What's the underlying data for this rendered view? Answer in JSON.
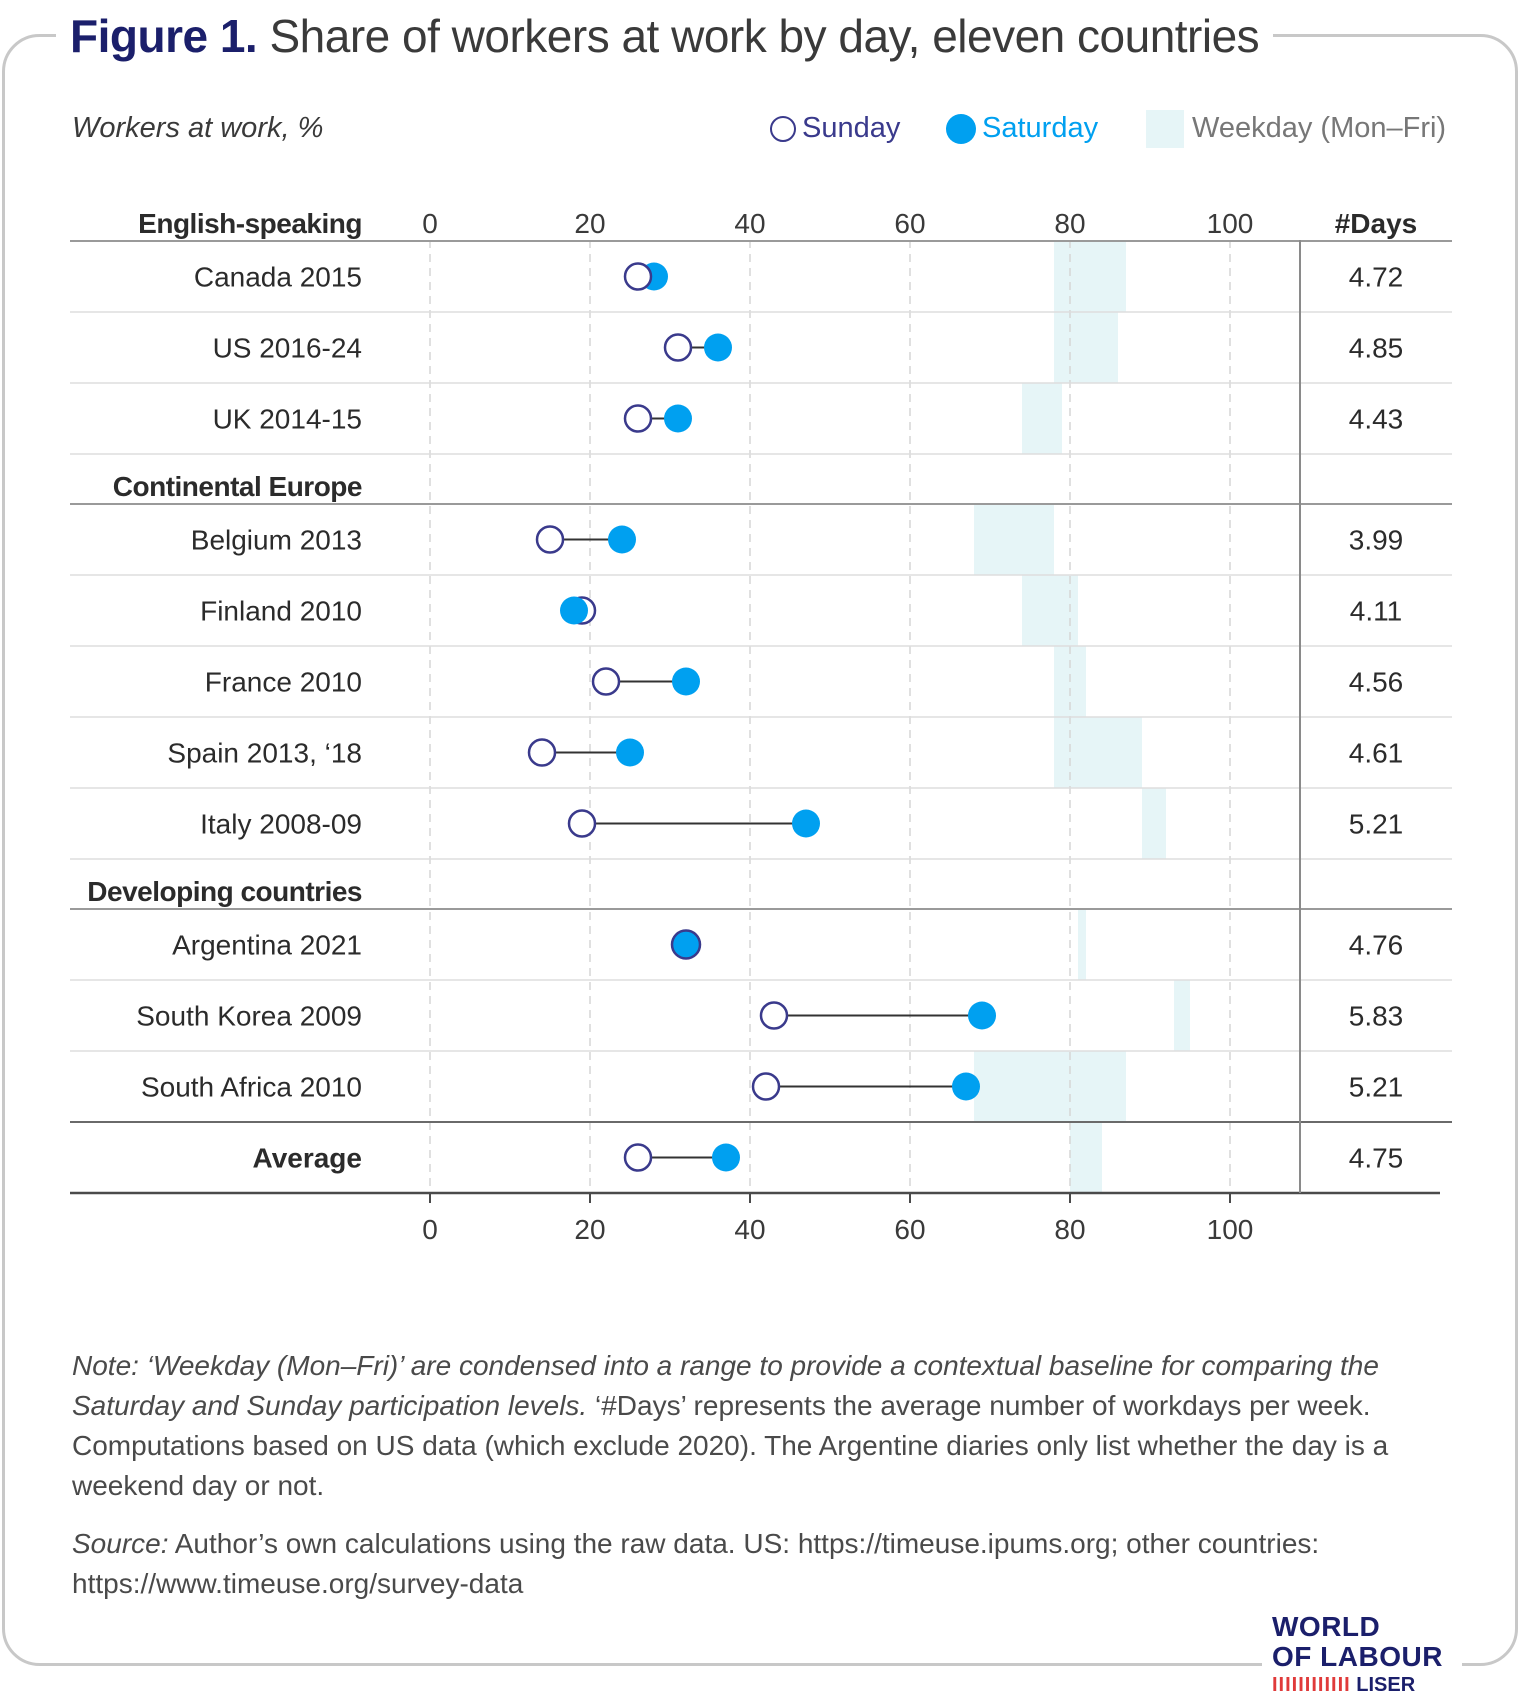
{
  "header": {
    "figure_label": "Figure 1.",
    "title": "Share of workers at work by day, eleven countries",
    "subtitle": "Workers at work, %"
  },
  "legend": {
    "sunday": "Sunday",
    "saturday": "Saturday",
    "weekday": "Weekday (Mon–Fri)"
  },
  "colors": {
    "sunday": "#3a3a8c",
    "saturday": "#00a0f0",
    "weekday": "#e6f5f7",
    "title_accent": "#1b1f6b"
  },
  "chart_data": {
    "type": "dot-range",
    "x_ticks": [
      "0",
      "20",
      "40",
      "60",
      "80",
      "100"
    ],
    "xlim": [
      0,
      100
    ],
    "days_header": "#Days",
    "groups": [
      {
        "name": "English-speaking",
        "rows": [
          {
            "label": "Canada 2015",
            "sunday": 26,
            "saturday": 28,
            "weekday_min": 78,
            "weekday_max": 87,
            "days": "4.72"
          },
          {
            "label": "US 2016-24",
            "sunday": 31,
            "saturday": 36,
            "weekday_min": 78,
            "weekday_max": 86,
            "days": "4.85"
          },
          {
            "label": "UK 2014-15",
            "sunday": 26,
            "saturday": 31,
            "weekday_min": 74,
            "weekday_max": 79,
            "days": "4.43"
          }
        ]
      },
      {
        "name": "Continental Europe",
        "rows": [
          {
            "label": "Belgium 2013",
            "sunday": 15,
            "saturday": 24,
            "weekday_min": 68,
            "weekday_max": 78,
            "days": "3.99"
          },
          {
            "label": "Finland 2010",
            "sunday": 19,
            "saturday": 18,
            "weekday_min": 74,
            "weekday_max": 81,
            "days": "4.11"
          },
          {
            "label": "France 2010",
            "sunday": 22,
            "saturday": 32,
            "weekday_min": 78,
            "weekday_max": 82,
            "days": "4.56"
          },
          {
            "label": "Spain 2013, ‘18",
            "sunday": 14,
            "saturday": 25,
            "weekday_min": 78,
            "weekday_max": 89,
            "days": "4.61"
          },
          {
            "label": "Italy 2008-09",
            "sunday": 19,
            "saturday": 47,
            "weekday_min": 89,
            "weekday_max": 92,
            "days": "5.21"
          }
        ]
      },
      {
        "name": "Developing countries",
        "rows": [
          {
            "label": "Argentina 2021",
            "sunday": 32,
            "saturday": 32,
            "weekday_min": 81,
            "weekday_max": 82,
            "days": "4.76"
          },
          {
            "label": "South Korea 2009",
            "sunday": 43,
            "saturday": 69,
            "weekday_min": 93,
            "weekday_max": 95,
            "days": "5.83"
          },
          {
            "label": "South Africa 2010",
            "sunday": 42,
            "saturday": 67,
            "weekday_min": 68,
            "weekday_max": 87,
            "days": "5.21"
          }
        ]
      }
    ],
    "average": {
      "label": "Average",
      "sunday": 26,
      "saturday": 37,
      "weekday_min": 80,
      "weekday_max": 84,
      "days": "4.75"
    }
  },
  "note": {
    "italic": "Note: ‘Weekday (Mon–Fri)’ are condensed into a range to provide a contextual baseline for comparing the Saturday and Sunday participation levels.",
    "regular": " ‘#Days’ represents the average number of workdays per week. Computations based on US data (which exclude 2020). The Argentine diaries only list whether the day is a weekend day or not."
  },
  "source": {
    "label": "Source:",
    "text": " Author’s own calculations using the raw data. US: https://timeuse.ipums.org; other countries: https://www.timeuse.org/survey-data"
  },
  "logo": {
    "line1": "WORLD",
    "line2": "OF LABOUR",
    "bars": "IIIIIIIIIIII",
    "line3": "LISER"
  }
}
